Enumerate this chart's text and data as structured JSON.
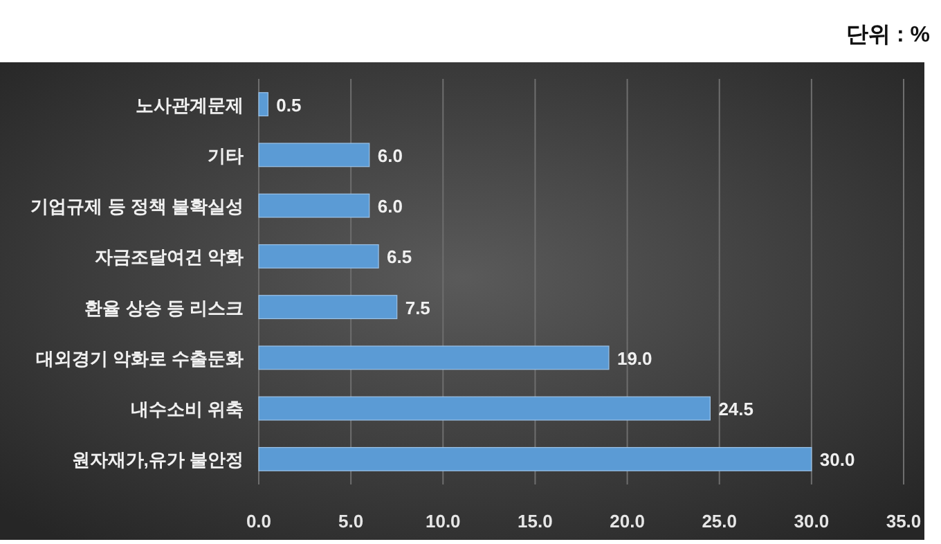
{
  "chart_data": {
    "type": "bar",
    "orientation": "horizontal",
    "categories": [
      "노사관계문제",
      "기타",
      "기업규제 등 정책 불확실성",
      "자금조달여건 악화",
      "환율 상승 등 리스크",
      "대외경기 악화로 수출둔화",
      "내수소비 위축",
      "원자재가,유가 불안정"
    ],
    "values": [
      0.5,
      6.0,
      6.0,
      6.5,
      7.5,
      19.0,
      24.5,
      30.0
    ],
    "value_labels": [
      "0.5",
      "6.0",
      "6.0",
      "6.5",
      "7.5",
      "19.0",
      "24.5",
      "30.0"
    ],
    "color": "#5b9bd5",
    "xlim": [
      0,
      35
    ],
    "xticks": [
      {
        "value": 0,
        "label": "0.0"
      },
      {
        "value": 5,
        "label": "5.0"
      },
      {
        "value": 10,
        "label": "10.0"
      },
      {
        "value": 15,
        "label": "15.0"
      },
      {
        "value": 20,
        "label": "20.0"
      },
      {
        "value": 25,
        "label": "25.0"
      },
      {
        "value": 30,
        "label": "30.0"
      },
      {
        "value": 35,
        "label": "35.0"
      }
    ],
    "grid": "x",
    "annotations": [
      "단위 : %"
    ]
  }
}
